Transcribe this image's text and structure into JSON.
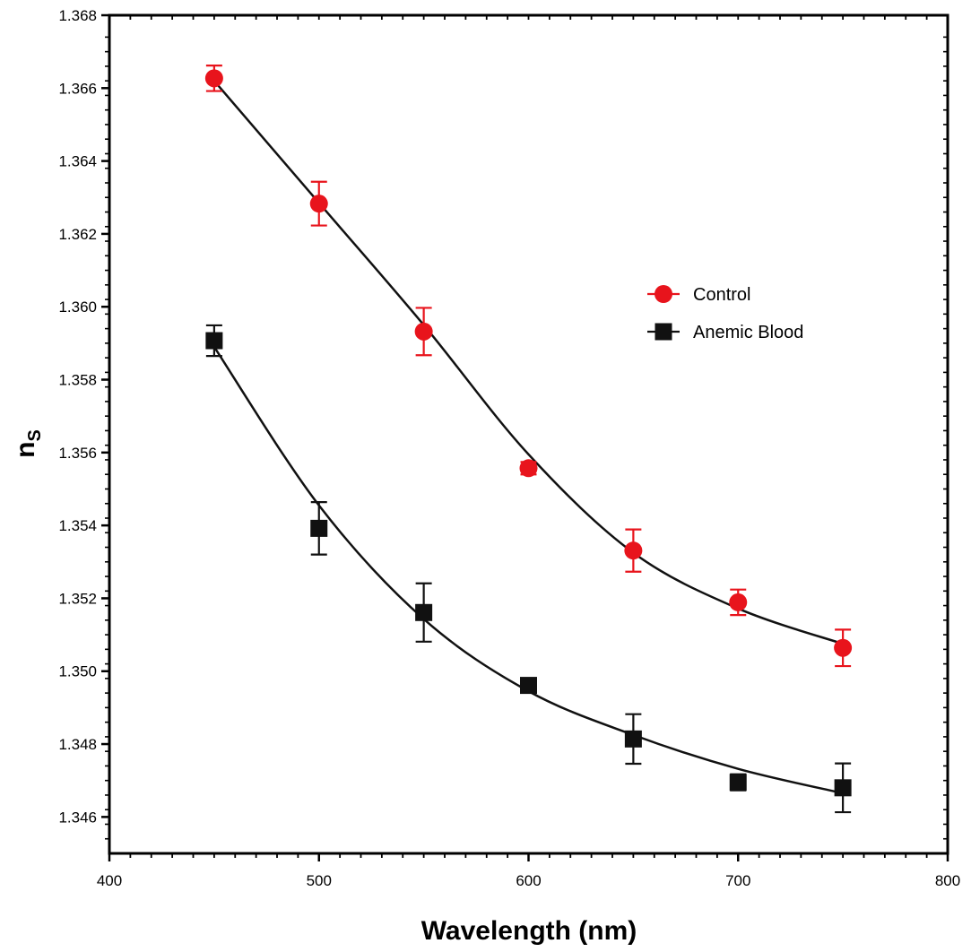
{
  "chart_data": {
    "type": "scatter",
    "title": "",
    "xlabel": "Wavelength (nm)",
    "ylabel": "n",
    "ylabel_subscript": "S",
    "xlim": [
      400,
      800
    ],
    "ylim": [
      1.345,
      1.368
    ],
    "xticks": [
      400,
      500,
      600,
      700,
      800
    ],
    "xtick_labels": [
      "400",
      "500",
      "600",
      "700",
      "800"
    ],
    "yticks": [
      1.346,
      1.348,
      1.35,
      1.352,
      1.354,
      1.356,
      1.358,
      1.36,
      1.362,
      1.364,
      1.366,
      1.368
    ],
    "ytick_labels": [
      "1.346",
      "1.348",
      "1.350",
      "1.352",
      "1.354",
      "1.356",
      "1.358",
      "1.360",
      "1.362",
      "1.364",
      "1.366",
      "1.368"
    ],
    "grid": false,
    "legend_position": "center-right",
    "x": [
      450,
      500,
      550,
      600,
      650,
      700,
      750
    ],
    "series": [
      {
        "name": "Control",
        "marker": "circle",
        "color": "#e8141c",
        "values": [
          1.36627,
          1.36283,
          1.35932,
          1.35557,
          1.35331,
          1.35189,
          1.35064
        ],
        "errors": [
          0.00035,
          0.0006,
          0.00065,
          0.00017,
          0.00058,
          0.00035,
          0.0005
        ],
        "fit": [
          1.3662,
          1.36285,
          1.3595,
          1.35595,
          1.35325,
          1.35172,
          1.35075
        ]
      },
      {
        "name": "Anemic Blood",
        "marker": "square",
        "color": "#111111",
        "values": [
          1.35907,
          1.35392,
          1.35161,
          1.34961,
          1.34814,
          1.34695,
          1.3468
        ],
        "errors": [
          0.00042,
          0.00072,
          0.0008,
          0.00017,
          0.00068,
          0.00022,
          0.00067
        ],
        "fit": [
          1.3589,
          1.35455,
          1.35143,
          1.34945,
          1.34825,
          1.34732,
          1.34665
        ]
      }
    ]
  }
}
